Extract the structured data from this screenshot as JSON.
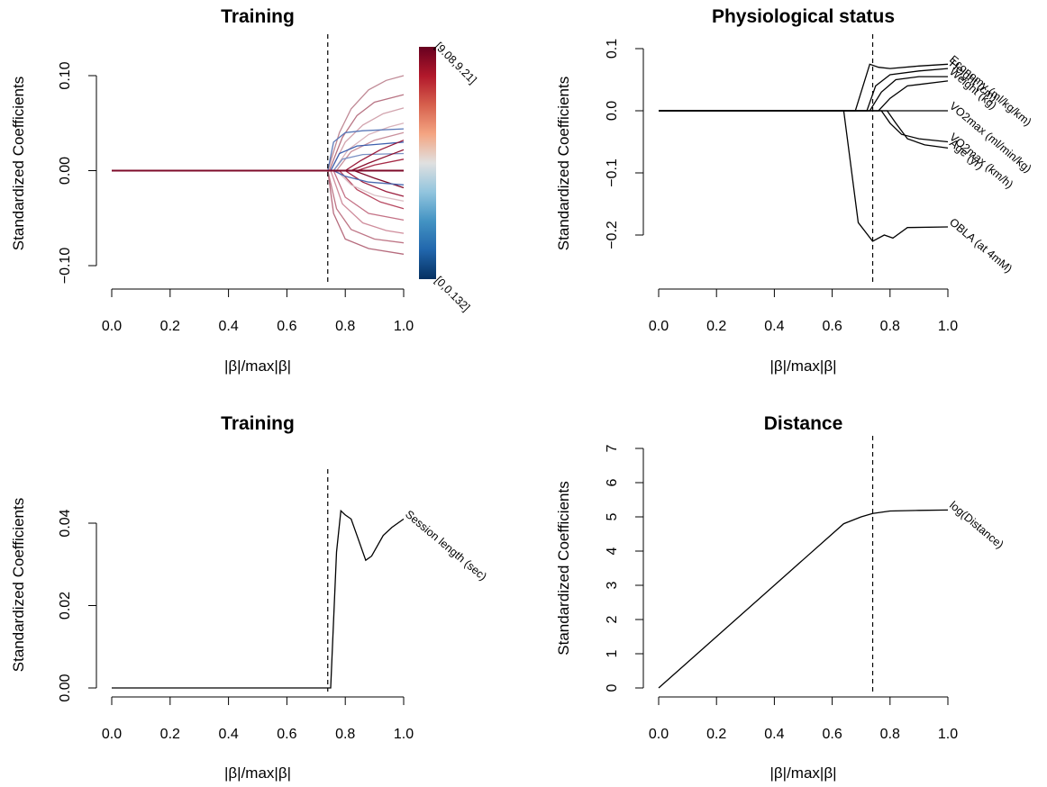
{
  "chart_data": [
    {
      "type": "line",
      "title": "Training",
      "xlabel": "|β|/max|β|",
      "ylabel": "Standardized Coefficients",
      "xlim": [
        0,
        1
      ],
      "ylim": [
        -0.12,
        0.12
      ],
      "xticks": [
        0.0,
        0.2,
        0.4,
        0.6,
        0.8,
        1.0
      ],
      "xtick_labels": [
        "0.0",
        "0.2",
        "0.4",
        "0.6",
        "0.8",
        "1.0"
      ],
      "yticks": [
        -0.1,
        0.0,
        0.1
      ],
      "ytick_labels": [
        "−0.10",
        "0.00",
        "0.10"
      ],
      "vline": 0.74,
      "colorbar": {
        "top_label": "[9.08,9.21]",
        "bottom_label": "[0,0.132]",
        "colors": [
          "#053061",
          "#2166ac",
          "#4393c3",
          "#92c5de",
          "#e0e0e0",
          "#f4a582",
          "#d6604d",
          "#b2182b",
          "#67001f"
        ]
      },
      "series": [
        {
          "color": "#c08a96",
          "values": [
            [
              0,
              0
            ],
            [
              0.74,
              0
            ],
            [
              0.78,
              0.04
            ],
            [
              0.82,
              0.065
            ],
            [
              0.88,
              0.085
            ],
            [
              0.94,
              0.095
            ],
            [
              1.0,
              0.1
            ]
          ]
        },
        {
          "color": "#b87484",
          "values": [
            [
              0,
              0
            ],
            [
              0.745,
              0
            ],
            [
              0.79,
              0.035
            ],
            [
              0.84,
              0.058
            ],
            [
              0.9,
              0.072
            ],
            [
              1.0,
              0.08
            ]
          ]
        },
        {
          "color": "#d2a4ae",
          "values": [
            [
              0,
              0
            ],
            [
              0.75,
              0
            ],
            [
              0.8,
              0.03
            ],
            [
              0.86,
              0.048
            ],
            [
              0.93,
              0.06
            ],
            [
              1.0,
              0.066
            ]
          ]
        },
        {
          "color": "#d9b3bb",
          "values": [
            [
              0,
              0
            ],
            [
              0.76,
              0
            ],
            [
              0.81,
              0.022
            ],
            [
              0.88,
              0.038
            ],
            [
              0.95,
              0.046
            ],
            [
              1.0,
              0.05
            ]
          ]
        },
        {
          "color": "#c9909c",
          "values": [
            [
              0,
              0
            ],
            [
              0.77,
              0
            ],
            [
              0.82,
              0.02
            ],
            [
              0.9,
              0.032
            ],
            [
              1.0,
              0.04
            ]
          ]
        },
        {
          "color": "#5a78b8",
          "values": [
            [
              0,
              0
            ],
            [
              0.74,
              0
            ],
            [
              0.76,
              0.03
            ],
            [
              0.8,
              0.04
            ],
            [
              0.86,
              0.042
            ],
            [
              1.0,
              0.044
            ]
          ]
        },
        {
          "color": "#3d5fae",
          "values": [
            [
              0,
              0
            ],
            [
              0.75,
              0
            ],
            [
              0.78,
              0.018
            ],
            [
              0.84,
              0.026
            ],
            [
              0.92,
              0.028
            ],
            [
              1.0,
              0.03
            ]
          ]
        },
        {
          "color": "#7a91c4",
          "values": [
            [
              0,
              0
            ],
            [
              0.76,
              0
            ],
            [
              0.79,
              0.012
            ],
            [
              0.86,
              0.017
            ],
            [
              1.0,
              0.018
            ]
          ]
        },
        {
          "color": "#9a1b3b",
          "values": [
            [
              0,
              0
            ],
            [
              0.8,
              0
            ],
            [
              0.85,
              0.01
            ],
            [
              0.92,
              0.022
            ],
            [
              1.0,
              0.032
            ]
          ]
        },
        {
          "color": "#8a0f2e",
          "values": [
            [
              0,
              0
            ],
            [
              0.82,
              0
            ],
            [
              0.88,
              0.008
            ],
            [
              0.94,
              0.015
            ],
            [
              1.0,
              0.022
            ]
          ]
        },
        {
          "color": "#a52a46",
          "values": [
            [
              0,
              0
            ],
            [
              0.84,
              0
            ],
            [
              0.9,
              0.006
            ],
            [
              1.0,
              0.012
            ]
          ]
        },
        {
          "color": "#7d0a29",
          "values": [
            [
              0,
              0
            ],
            [
              0.83,
              0
            ],
            [
              0.9,
              -0.008
            ],
            [
              0.96,
              -0.014
            ],
            [
              1.0,
              -0.018
            ]
          ]
        },
        {
          "color": "#9c1f3f",
          "values": [
            [
              0,
              0
            ],
            [
              0.8,
              0
            ],
            [
              0.86,
              -0.012
            ],
            [
              0.94,
              -0.022
            ],
            [
              1.0,
              -0.027
            ]
          ]
        },
        {
          "color": "#b84a62",
          "values": [
            [
              0,
              0
            ],
            [
              0.78,
              0
            ],
            [
              0.84,
              -0.02
            ],
            [
              0.92,
              -0.033
            ],
            [
              1.0,
              -0.04
            ]
          ]
        },
        {
          "color": "#c47286",
          "values": [
            [
              0,
              0
            ],
            [
              0.76,
              0
            ],
            [
              0.8,
              -0.028
            ],
            [
              0.88,
              -0.045
            ],
            [
              1.0,
              -0.052
            ]
          ]
        },
        {
          "color": "#cf8d9c",
          "values": [
            [
              0,
              0
            ],
            [
              0.75,
              0
            ],
            [
              0.79,
              -0.035
            ],
            [
              0.86,
              -0.055
            ],
            [
              0.94,
              -0.063
            ],
            [
              1.0,
              -0.066
            ]
          ]
        },
        {
          "color": "#bf7787",
          "values": [
            [
              0,
              0
            ],
            [
              0.74,
              0
            ],
            [
              0.77,
              -0.04
            ],
            [
              0.82,
              -0.062
            ],
            [
              0.9,
              -0.072
            ],
            [
              1.0,
              -0.076
            ]
          ]
        },
        {
          "color": "#b66b7d",
          "values": [
            [
              0,
              0
            ],
            [
              0.74,
              0
            ],
            [
              0.76,
              -0.045
            ],
            [
              0.8,
              -0.072
            ],
            [
              0.88,
              -0.082
            ],
            [
              1.0,
              -0.088
            ]
          ]
        },
        {
          "color": "#dcc0c6",
          "values": [
            [
              0,
              0
            ],
            [
              0.77,
              0
            ],
            [
              0.82,
              -0.015
            ],
            [
              0.9,
              -0.026
            ],
            [
              1.0,
              -0.032
            ]
          ]
        },
        {
          "color": "#4a69b0",
          "values": [
            [
              0,
              0
            ],
            [
              0.76,
              0
            ],
            [
              0.8,
              -0.006
            ],
            [
              0.88,
              -0.012
            ],
            [
              1.0,
              -0.015
            ]
          ]
        }
      ]
    },
    {
      "type": "line",
      "title": "Physiological status",
      "xlabel": "|β|/max|β|",
      "ylabel": "Standardized Coefficients",
      "xlim": [
        0,
        1
      ],
      "ylim": [
        -0.27,
        0.1
      ],
      "xticks": [
        0.0,
        0.2,
        0.4,
        0.6,
        0.8,
        1.0
      ],
      "xtick_labels": [
        "0.0",
        "0.2",
        "0.4",
        "0.6",
        "0.8",
        "1.0"
      ],
      "yticks": [
        -0.2,
        -0.1,
        0.0,
        0.1
      ],
      "ytick_labels": [
        "−0.2",
        "−0.1",
        "0.0",
        "0.1"
      ],
      "vline": 0.74,
      "series": [
        {
          "name": "Economy (ml/kg/km)",
          "values": [
            [
              0,
              0
            ],
            [
              0.68,
              0
            ],
            [
              0.73,
              0.075
            ],
            [
              0.76,
              0.07
            ],
            [
              0.8,
              0.068
            ],
            [
              0.9,
              0.072
            ],
            [
              1.0,
              0.075
            ]
          ]
        },
        {
          "name": "Height (cm)",
          "values": [
            [
              0,
              0
            ],
            [
              0.72,
              0
            ],
            [
              0.75,
              0.04
            ],
            [
              0.8,
              0.058
            ],
            [
              0.9,
              0.064
            ],
            [
              1.0,
              0.068
            ]
          ]
        },
        {
          "name": "Weight (kg)",
          "values": [
            [
              0,
              0
            ],
            [
              0.73,
              0
            ],
            [
              0.77,
              0.03
            ],
            [
              0.82,
              0.05
            ],
            [
              0.9,
              0.055
            ],
            [
              1.0,
              0.055
            ]
          ]
        },
        {
          "name": "",
          "values": [
            [
              0,
              0
            ],
            [
              0.76,
              0
            ],
            [
              0.8,
              0.02
            ],
            [
              0.86,
              0.04
            ],
            [
              1.0,
              0.048
            ]
          ]
        },
        {
          "name": "VO2max (ml/min/kg)",
          "values": [
            [
              0,
              0
            ],
            [
              1.0,
              0
            ]
          ]
        },
        {
          "name": "VO2max (km/h)",
          "values": [
            [
              0,
              0
            ],
            [
              0.77,
              0
            ],
            [
              0.8,
              -0.02
            ],
            [
              0.84,
              -0.038
            ],
            [
              0.9,
              -0.045
            ],
            [
              1.0,
              -0.05
            ]
          ]
        },
        {
          "name": "Age (yr)",
          "values": [
            [
              0,
              0
            ],
            [
              0.79,
              0
            ],
            [
              0.82,
              -0.02
            ],
            [
              0.86,
              -0.045
            ],
            [
              0.92,
              -0.055
            ],
            [
              1.0,
              -0.06
            ]
          ]
        },
        {
          "name": "OBLA (at 4mM)",
          "values": [
            [
              0,
              0
            ],
            [
              0.64,
              0
            ],
            [
              0.69,
              -0.18
            ],
            [
              0.74,
              -0.21
            ],
            [
              0.78,
              -0.2
            ],
            [
              0.81,
              -0.205
            ],
            [
              0.86,
              -0.188
            ],
            [
              1.0,
              -0.187
            ]
          ]
        }
      ]
    },
    {
      "type": "line",
      "title": "Training",
      "xlabel": "|β|/max|β|",
      "ylabel": "Standardized Coefficients",
      "xlim": [
        0,
        1
      ],
      "ylim": [
        0,
        0.05
      ],
      "xticks": [
        0.0,
        0.2,
        0.4,
        0.6,
        0.8,
        1.0
      ],
      "xtick_labels": [
        "0.0",
        "0.2",
        "0.4",
        "0.6",
        "0.8",
        "1.0"
      ],
      "yticks": [
        0.0,
        0.02,
        0.04
      ],
      "ytick_labels": [
        "0.00",
        "0.02",
        "0.04"
      ],
      "vline": 0.74,
      "series": [
        {
          "name": "Session length (sec)",
          "values": [
            [
              0,
              0
            ],
            [
              0.75,
              0
            ],
            [
              0.77,
              0.033
            ],
            [
              0.785,
              0.043
            ],
            [
              0.8,
              0.042
            ],
            [
              0.82,
              0.041
            ],
            [
              0.84,
              0.037
            ],
            [
              0.87,
              0.031
            ],
            [
              0.89,
              0.032
            ],
            [
              0.93,
              0.037
            ],
            [
              0.96,
              0.039
            ],
            [
              1.0,
              0.041
            ]
          ]
        }
      ]
    },
    {
      "type": "line",
      "title": "Distance",
      "xlabel": "|β|/max|β|",
      "ylabel": "Standardized Coefficients",
      "xlim": [
        0,
        1
      ],
      "ylim": [
        0,
        7
      ],
      "xticks": [
        0.0,
        0.2,
        0.4,
        0.6,
        0.8,
        1.0
      ],
      "xtick_labels": [
        "0.0",
        "0.2",
        "0.4",
        "0.6",
        "0.8",
        "1.0"
      ],
      "yticks": [
        0,
        1,
        2,
        3,
        4,
        5,
        6,
        7
      ],
      "ytick_labels": [
        "0",
        "1",
        "2",
        "3",
        "4",
        "5",
        "6",
        "7"
      ],
      "vline": 0.74,
      "series": [
        {
          "name": "log(Distance)",
          "values": [
            [
              0,
              0
            ],
            [
              0.64,
              4.8
            ],
            [
              0.7,
              5.0
            ],
            [
              0.74,
              5.1
            ],
            [
              0.8,
              5.17
            ],
            [
              0.9,
              5.19
            ],
            [
              1.0,
              5.2
            ]
          ]
        }
      ]
    }
  ]
}
